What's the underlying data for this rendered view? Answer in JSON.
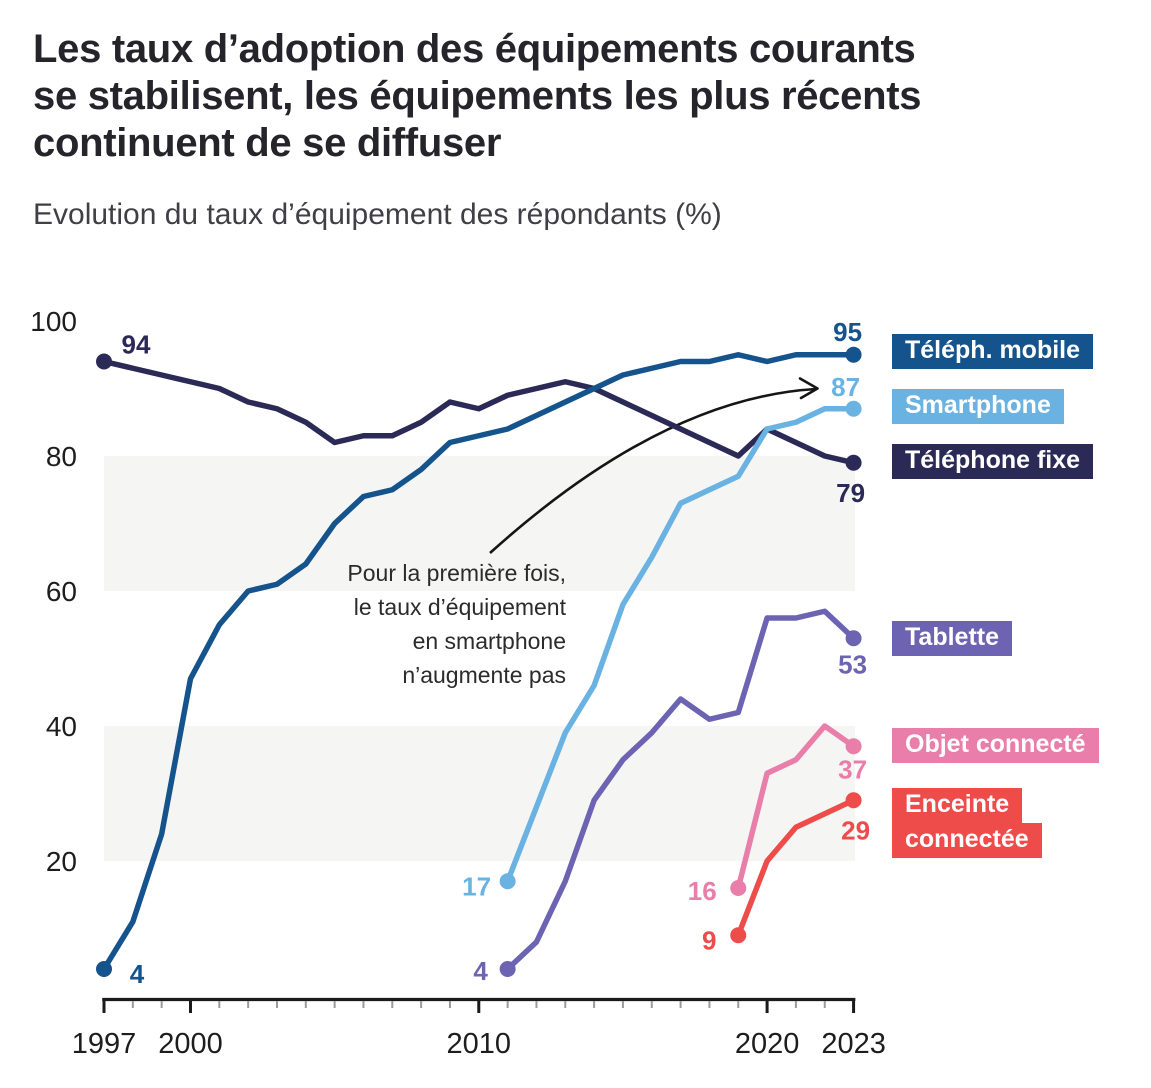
{
  "header": {
    "title_lines": [
      "Les taux d’adoption des équipements courants",
      "se stabilisent, les équipements les plus récents",
      "continuent de se diffuser"
    ],
    "subtitle": "Evolution du taux d’équipement des répondants (%)"
  },
  "annotation": {
    "lines": [
      "Pour la première fois,",
      "le taux d’équipement",
      "en smartphone",
      "n’augmente pas"
    ]
  },
  "chart_data": {
    "type": "line",
    "title": "Les taux d’adoption des équipements courants se stabilisent, les équipements les plus récents continuent de se diffuser",
    "subtitle": "Evolution du taux d’équipement des répondants (%)",
    "xlabel": "",
    "ylabel": "%",
    "x_axis": {
      "range": [
        1997,
        2023
      ],
      "labeled_ticks": [
        1997,
        2000,
        2010,
        2020,
        2023
      ],
      "minor_tick_interval": 1
    },
    "y_axis": {
      "range": [
        0,
        100
      ],
      "ticks": [
        20,
        40,
        60,
        80,
        100
      ],
      "shaded_bands": [
        [
          20,
          40
        ],
        [
          60,
          80
        ]
      ],
      "grid": false
    },
    "band_color": "#f5f5f3",
    "series": [
      {
        "id": "fixe",
        "name": "Téléphone fixe",
        "color": "#2b2a56",
        "start_year": 1997,
        "values": [
          94,
          93,
          92,
          91,
          90,
          88,
          87,
          85,
          82,
          83,
          83,
          85,
          88,
          87,
          89,
          90,
          91,
          90,
          88,
          86,
          84,
          82,
          80,
          84,
          82,
          80,
          79
        ],
        "first_value_label": "94",
        "last_value_label": "79"
      },
      {
        "id": "mobile",
        "name": "Téléph. mobile",
        "color": "#15538d",
        "start_year": 1997,
        "values": [
          4,
          11,
          24,
          47,
          55,
          60,
          61,
          64,
          70,
          74,
          75,
          78,
          82,
          83,
          84,
          86,
          88,
          90,
          92,
          93,
          94,
          94,
          95,
          94,
          95,
          95,
          95
        ],
        "first_value_label": "4",
        "last_value_label": "95"
      },
      {
        "id": "smartphone",
        "name": "Smartphone",
        "color": "#69b2e1",
        "start_year": 2011,
        "values": [
          17,
          28,
          39,
          46,
          58,
          65,
          73,
          75,
          77,
          84,
          85,
          87,
          87
        ],
        "first_value_label": "17",
        "last_value_label": "87"
      },
      {
        "id": "tablette",
        "name": "Tablette",
        "color": "#6c64b2",
        "start_year": 2011,
        "values": [
          4,
          8,
          17,
          29,
          35,
          39,
          44,
          41,
          42,
          56,
          56,
          57,
          53
        ],
        "first_value_label": "4",
        "last_value_label": "53"
      },
      {
        "id": "objet",
        "name": "Objet connecté",
        "color": "#e87ea9",
        "start_year": 2019,
        "values": [
          16,
          33,
          35,
          40,
          37
        ],
        "first_value_label": "16",
        "last_value_label": "37"
      },
      {
        "id": "enceinte",
        "name": "Enceinte connectée",
        "color": "#ee4b4b",
        "start_year": 2019,
        "values": [
          9,
          20,
          25,
          27,
          29
        ],
        "first_value_label": "9",
        "last_value_label": "29"
      }
    ],
    "legend_position": "right",
    "legend": [
      {
        "series": "mobile",
        "lines": [
          "Téléph. mobile"
        ],
        "color": "#15538d"
      },
      {
        "series": "smartphone",
        "lines": [
          "Smartphone"
        ],
        "color": "#69b2e1"
      },
      {
        "series": "fixe",
        "lines": [
          "Téléphone fixe"
        ],
        "color": "#2b2a56"
      },
      {
        "series": "tablette",
        "lines": [
          "Tablette"
        ],
        "color": "#6c64b2"
      },
      {
        "series": "objet",
        "lines": [
          "Objet connecté"
        ],
        "color": "#e87ea9"
      },
      {
        "series": "enceinte",
        "lines": [
          "Enceinte",
          "connectée"
        ],
        "color": "#ee4b4b"
      }
    ]
  }
}
